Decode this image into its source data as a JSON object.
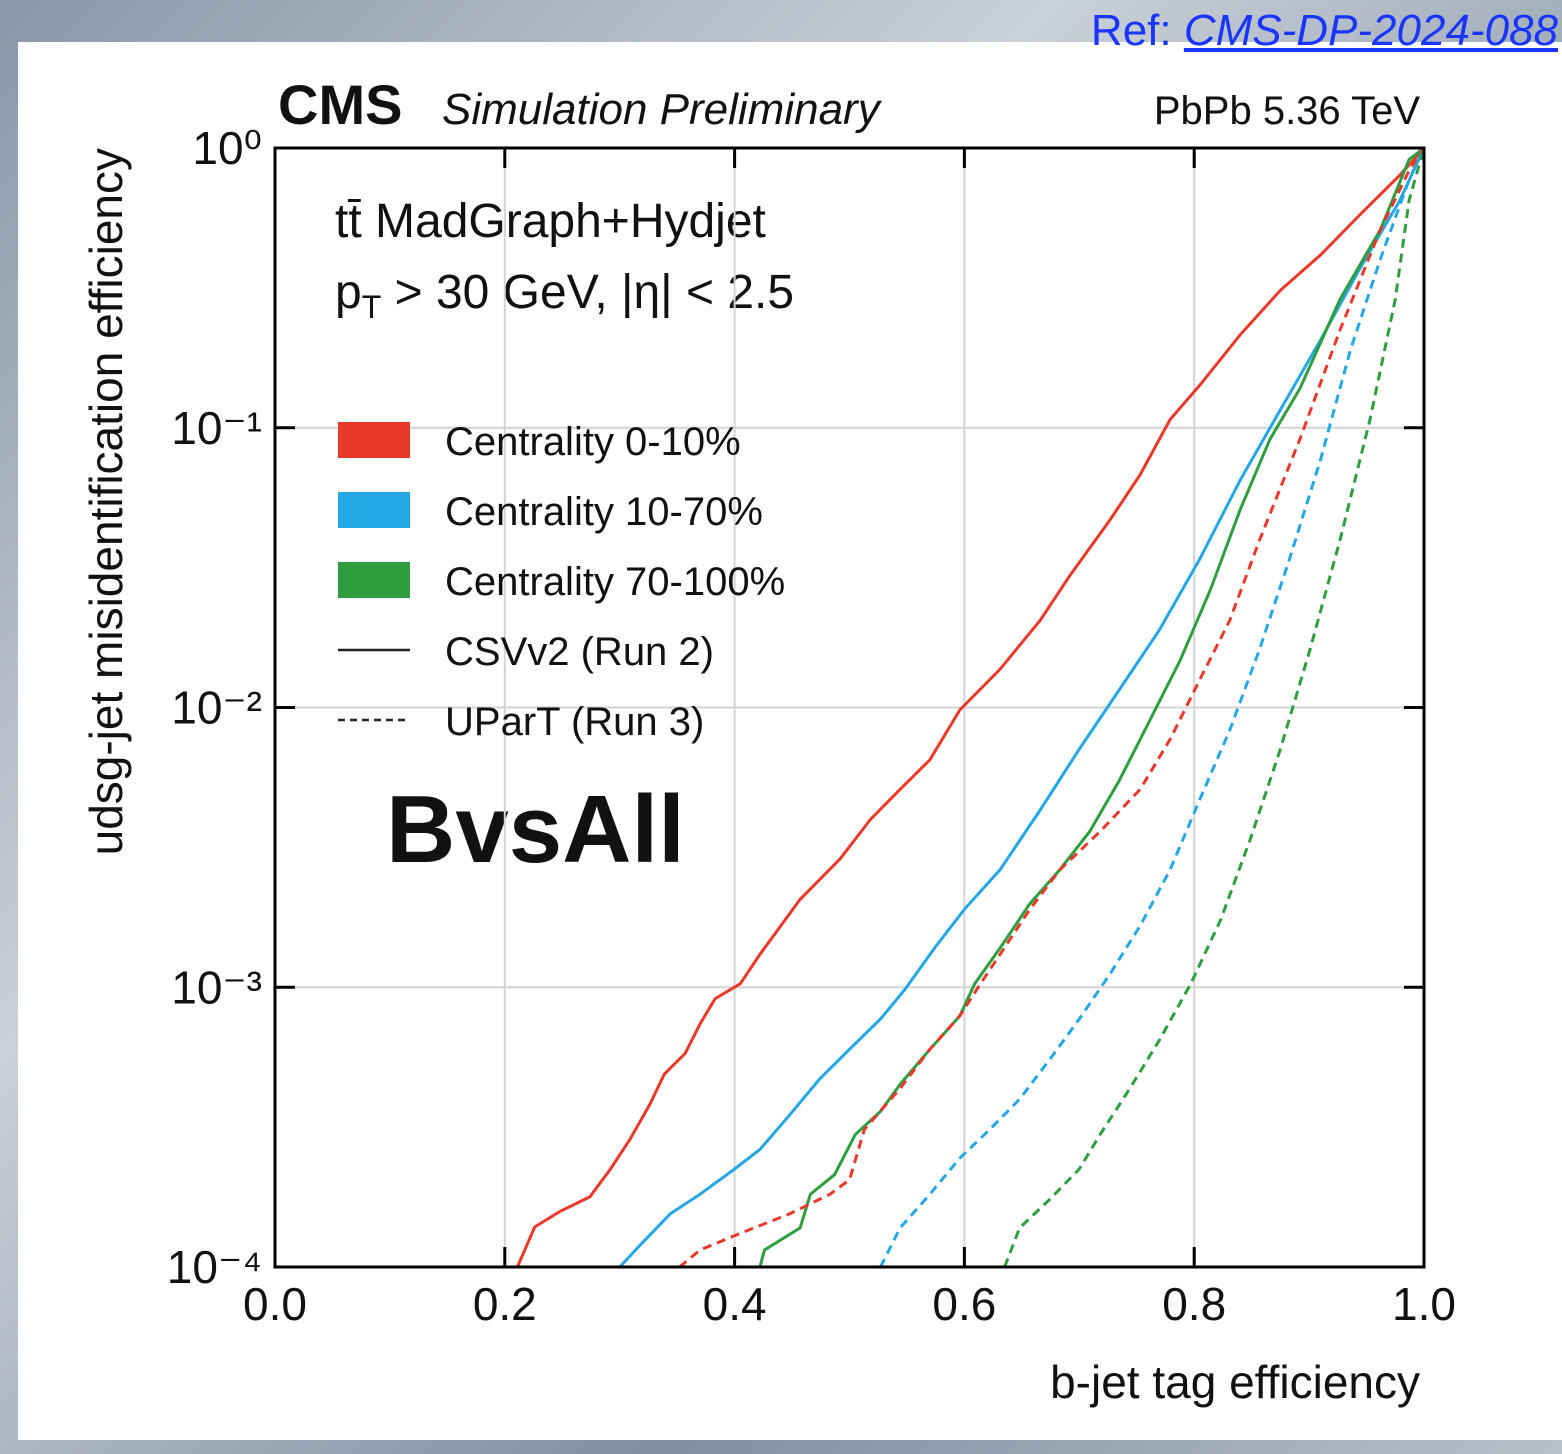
{
  "reference": {
    "prefix": "Ref: ",
    "link": "CMS-DP-2024-088"
  },
  "chart_data": {
    "type": "line",
    "experiment": "CMS",
    "status": "Simulation Preliminary",
    "system": "PbPb 5.36 TeV",
    "process": "tt̄ MadGraph+Hydjet",
    "kinematics": [
      "p",
      "T",
      " > 30 GeV, |η| < 2.5"
    ],
    "tagger_label": "BvsAll",
    "xlabel": "b-jet tag efficiency",
    "ylabel": "udsg-jet misidentification efficiency",
    "xlim": [
      0,
      1
    ],
    "ylim": [
      0.0001,
      1
    ],
    "yscale": "log",
    "grid": true,
    "xticks": [
      {
        "value": 0,
        "label": "0.0"
      },
      0.2,
      0.4,
      0.6,
      0.8,
      {
        "value": 1,
        "label": "1.0"
      }
    ],
    "yticks": [
      {
        "value": 0.0001,
        "label": "10⁻⁴"
      },
      {
        "value": 0.001,
        "label": "10⁻³"
      },
      {
        "value": 0.01,
        "label": "10⁻²"
      },
      {
        "value": 0.1,
        "label": "10⁻¹"
      },
      {
        "value": 1,
        "label": "10⁰"
      }
    ],
    "legend": [
      {
        "label": "Centrality 0-10%",
        "color": "#e8392a"
      },
      {
        "label": "Centrality 10-70%",
        "color": "#25a7e6"
      },
      {
        "label": "Centrality 70-100%",
        "color": "#2e9e3e"
      },
      {
        "label": "CSVv2 (Run 2)",
        "dash": false
      },
      {
        "label": "UParT (Run 3)",
        "dash": true
      }
    ],
    "series": [
      {
        "color": "#e8392a",
        "dash": false,
        "x": [
          0.211,
          0.226,
          0.248,
          0.274,
          0.292,
          0.309,
          0.326,
          0.339,
          0.357,
          0.37,
          0.383,
          0.405,
          0.422,
          0.457,
          0.492,
          0.518,
          0.544,
          0.57,
          0.596,
          0.631,
          0.666,
          0.692,
          0.727,
          0.753,
          0.779,
          0.805,
          0.84,
          0.875,
          0.91,
          0.944,
          0.979,
          1.0
        ],
        "values": [
          0.0001,
          0.000139,
          0.000158,
          0.000178,
          0.000224,
          0.000286,
          0.00038,
          0.00049,
          0.00058,
          0.00074,
          0.00091,
          0.00103,
          0.00131,
          0.00206,
          0.00288,
          0.00397,
          0.0051,
          0.0065,
          0.0098,
          0.0137,
          0.0205,
          0.0297,
          0.047,
          0.068,
          0.107,
          0.142,
          0.215,
          0.31,
          0.415,
          0.576,
          0.8,
          1
        ]
      },
      {
        "color": "#25a7e6",
        "dash": false,
        "x": [
          0.3,
          0.318,
          0.344,
          0.37,
          0.4,
          0.422,
          0.448,
          0.474,
          0.5,
          0.527,
          0.548,
          0.574,
          0.6,
          0.631,
          0.666,
          0.7,
          0.735,
          0.77,
          0.805,
          0.84,
          0.875,
          0.91,
          0.944,
          0.979,
          1.0
        ],
        "values": [
          0.0001,
          0.00012,
          0.000155,
          0.000182,
          0.000224,
          0.000263,
          0.00035,
          0.00047,
          0.0006,
          0.00077,
          0.00098,
          0.00138,
          0.0019,
          0.00263,
          0.0043,
          0.0071,
          0.0116,
          0.019,
          0.034,
          0.065,
          0.116,
          0.206,
          0.37,
          0.65,
          1
        ]
      },
      {
        "color": "#2e9e3e",
        "dash": false,
        "x": [
          0.422,
          0.426,
          0.457,
          0.466,
          0.487,
          0.505,
          0.527,
          0.544,
          0.57,
          0.596,
          0.609,
          0.631,
          0.657,
          0.683,
          0.709,
          0.735,
          0.762,
          0.788,
          0.814,
          0.84,
          0.866,
          0.892,
          0.927,
          0.962,
          0.987,
          1.0
        ],
        "values": [
          0.0001,
          0.000115,
          0.000138,
          0.000182,
          0.000214,
          0.000297,
          0.00036,
          0.00045,
          0.0006,
          0.00079,
          0.00103,
          0.00138,
          0.00199,
          0.00263,
          0.0036,
          0.0055,
          0.0091,
          0.0148,
          0.0263,
          0.051,
          0.091,
          0.138,
          0.288,
          0.51,
          0.91,
          1
        ]
      },
      {
        "color": "#e8392a",
        "dash": true,
        "x": [
          0.352,
          0.37,
          0.405,
          0.448,
          0.483,
          0.5,
          0.513,
          0.544,
          0.57,
          0.596,
          0.614,
          0.631,
          0.657,
          0.683,
          0.718,
          0.753,
          0.779,
          0.805,
          0.831,
          0.857,
          0.892,
          0.927,
          0.962,
          0.987,
          1.0
        ],
        "values": [
          0.0001,
          0.000115,
          0.000132,
          0.000155,
          0.000182,
          0.000205,
          0.00031,
          0.000435,
          0.0006,
          0.00079,
          0.00103,
          0.00131,
          0.0019,
          0.00263,
          0.0036,
          0.0051,
          0.0077,
          0.0126,
          0.0205,
          0.0398,
          0.091,
          0.224,
          0.51,
          0.83,
          1
        ]
      },
      {
        "color": "#25a7e6",
        "dash": true,
        "x": [
          0.527,
          0.544,
          0.57,
          0.596,
          0.622,
          0.648,
          0.674,
          0.7,
          0.727,
          0.753,
          0.779,
          0.805,
          0.831,
          0.857,
          0.883,
          0.91,
          0.936,
          0.962,
          0.987,
          1.0
        ],
        "values": [
          0.0001,
          0.000138,
          0.000182,
          0.000245,
          0.00031,
          0.000398,
          0.00055,
          0.00077,
          0.00112,
          0.00166,
          0.00263,
          0.0047,
          0.0083,
          0.0162,
          0.034,
          0.077,
          0.19,
          0.4,
          0.77,
          1
        ]
      },
      {
        "color": "#2e9e3e",
        "dash": true,
        "x": [
          0.635,
          0.648,
          0.674,
          0.7,
          0.718,
          0.744,
          0.77,
          0.797,
          0.823,
          0.849,
          0.875,
          0.901,
          0.927,
          0.953,
          0.975,
          0.987,
          1.0
        ],
        "values": [
          0.0001,
          0.000138,
          0.000174,
          0.000224,
          0.000297,
          0.000435,
          0.00065,
          0.00103,
          0.00174,
          0.0034,
          0.0071,
          0.0162,
          0.0398,
          0.107,
          0.288,
          0.65,
          1
        ]
      }
    ]
  }
}
